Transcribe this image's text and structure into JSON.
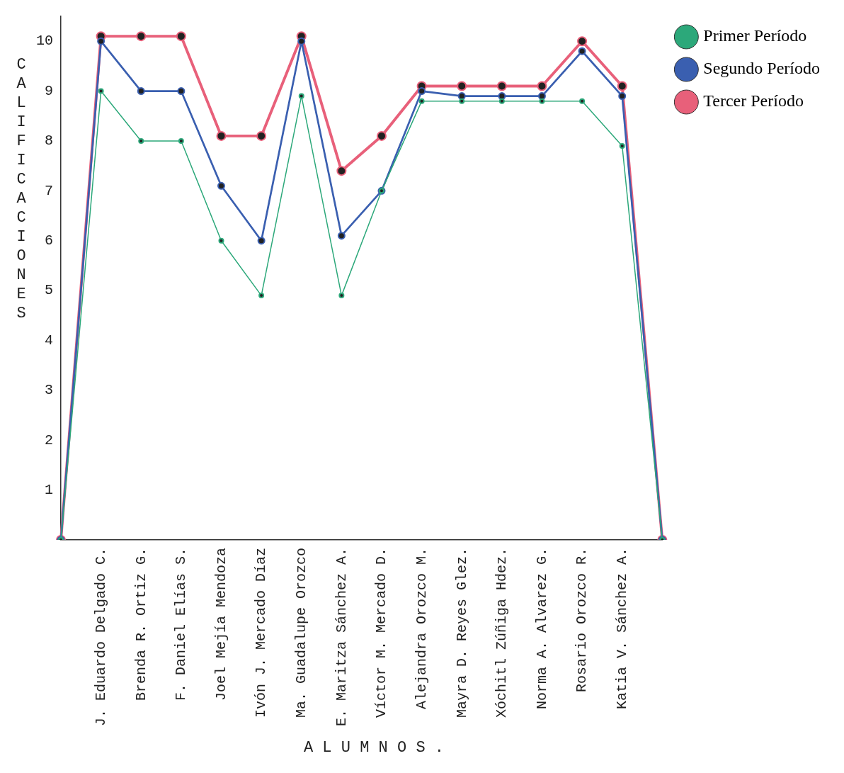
{
  "chart_data": {
    "type": "line",
    "xlabel": "A L U M N O S .",
    "ylabel": "CALIFICACIONES",
    "categories": [
      null,
      "J. Eduardo Delgado C.",
      "Brenda R. Ortiz G.",
      "F. Daniel Elías S.",
      "Joel Mejía Mendoza",
      "Ivón J. Mercado Díaz",
      "Ma. Guadalupe Orozco",
      "E. Maritza Sánchez A.",
      "Víctor M. Mercado D.",
      "Alejandra Orozco M.",
      "Mayra D. Reyes Glez.",
      "Xóchitl Zúñiga Hdez.",
      "Norma A. Alvarez G.",
      "Rosario Orozco R.",
      "Katia V. Sánchez A.",
      null
    ],
    "series": [
      {
        "name": "Primer Período",
        "color": "#2ca87a",
        "values": [
          0,
          9,
          8,
          8,
          6,
          4.9,
          8.9,
          4.9,
          7,
          8.8,
          8.8,
          8.8,
          8.8,
          8.8,
          7.9,
          0
        ]
      },
      {
        "name": "Segundo Período",
        "color": "#3a5fb0",
        "values": [
          0,
          10,
          9,
          9,
          7.1,
          6,
          10,
          6.1,
          7,
          9,
          8.9,
          8.9,
          8.9,
          9.8,
          8.9,
          0
        ]
      },
      {
        "name": "Tercer Período",
        "color": "#e8607a",
        "values": [
          0,
          10.1,
          10.1,
          10.1,
          8.1,
          8.1,
          10.1,
          7.4,
          8.1,
          9.1,
          9.1,
          9.1,
          9.1,
          10,
          9.1,
          0
        ]
      }
    ],
    "ylim": [
      0,
      10.5
    ],
    "yticks": [
      1,
      2,
      3,
      4,
      5,
      6,
      7,
      8,
      9,
      10
    ],
    "grid": false,
    "legend": "top right",
    "marker": "circle",
    "line_style": "solid"
  }
}
